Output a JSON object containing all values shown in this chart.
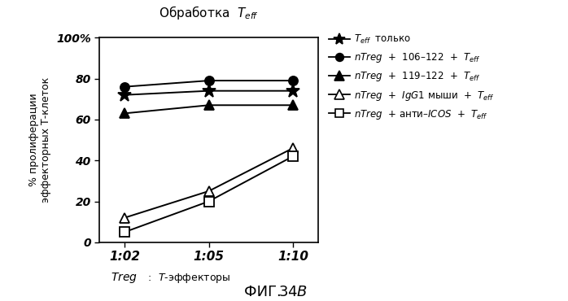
{
  "title": "Обработка  $\\mathit{T}_{eff}$",
  "ylabel": "% пролиферации\nэффекторных Т-клеток",
  "xtick_labels": [
    "1:02",
    "1:05",
    "1:10"
  ],
  "x_values": [
    1,
    2,
    3
  ],
  "ylim": [
    0,
    100
  ],
  "ytick_values": [
    0,
    20,
    40,
    60,
    80,
    100
  ],
  "ytick_labels": [
    "0",
    "20",
    "40",
    "60",
    "80",
    "100%"
  ],
  "fig_caption": "ФИГ.",
  "fig_caption_bold": "34B",
  "xlabel_italic": "Treg",
  "xlabel_rest": " :  Т-эффекторы",
  "plot_configs": [
    {
      "values": [
        72,
        74,
        74
      ],
      "marker": "*",
      "ms": 12,
      "mfc": "black",
      "mec": "black",
      "lw": 1.4
    },
    {
      "values": [
        76,
        79,
        79
      ],
      "marker": "o",
      "ms": 8,
      "mfc": "black",
      "mec": "black",
      "lw": 1.4
    },
    {
      "values": [
        63,
        67,
        67
      ],
      "marker": "^",
      "ms": 9,
      "mfc": "black",
      "mec": "black",
      "lw": 1.4
    },
    {
      "values": [
        12,
        25,
        46
      ],
      "marker": "^",
      "ms": 9,
      "mfc": "white",
      "mec": "black",
      "lw": 1.4
    },
    {
      "values": [
        5,
        20,
        42
      ],
      "marker": "s",
      "ms": 8,
      "mfc": "white",
      "mec": "black",
      "lw": 1.4
    }
  ],
  "legend_labels": [
    "$\\mathit{T}_{eff}$  только",
    "$\\mathit{nTreg}$  +  106–122  +  $\\mathit{T}_{eff}$",
    "$\\mathit{nTreg}$  +  119–122  +  $\\mathit{T}_{eff}$",
    "$\\mathit{nTreg}$  +  $\\mathit{IgG1}$ мыши  +  $\\mathit{T}_{eff}$",
    "$\\mathit{nTreg}$  + анти–$\\mathit{ICOS}$  +  $\\mathit{T}_{eff}$"
  ],
  "background_color": "#ffffff"
}
